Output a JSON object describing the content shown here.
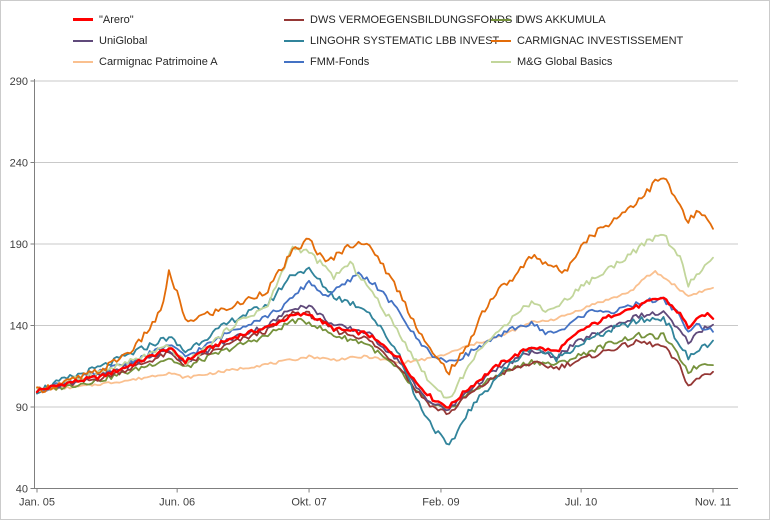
{
  "chart_data": {
    "type": "line",
    "title": "",
    "x_unit": "months since Jan 2005",
    "x_axis": {
      "tick_labels": [
        "Jan. 05",
        "Jun. 06",
        "Okt. 07",
        "Feb. 09",
        "Jul. 10",
        "Nov. 11"
      ],
      "tick_months": [
        0,
        17,
        33,
        49,
        66,
        82
      ],
      "min": 0,
      "max": 82
    },
    "y_axis": {
      "ticks": [
        40,
        90,
        140,
        190,
        240,
        290
      ],
      "min": 40,
      "max": 290
    },
    "grid": "horizontal",
    "legend_position": "top",
    "draw_order": [
      6,
      2,
      1,
      3,
      4,
      7,
      8,
      5,
      0
    ],
    "series": [
      {
        "name": "\"Arero\"",
        "key": "arero",
        "color": "#FF0000",
        "width": 2.4,
        "jitter": 1.3,
        "x": [
          0,
          4,
          8,
          12,
          16,
          18,
          20,
          24,
          28,
          31,
          33,
          36,
          40,
          44,
          46,
          48,
          50,
          52,
          56,
          60,
          63,
          66,
          70,
          73,
          75,
          76,
          78,
          79,
          81,
          82
        ],
        "y": [
          100,
          105,
          109,
          117,
          126,
          118,
          124,
          133,
          139,
          146,
          147,
          138,
          135,
          120,
          105,
          95,
          90,
          100,
          116,
          127,
          124,
          137,
          147,
          152,
          156,
          157,
          147,
          139,
          147,
          145
        ]
      },
      {
        "name": "DWS VERMOEGENSBILDUNGSFONDS  I",
        "key": "dws-vermoegensbildungsfonds",
        "color": "#953735",
        "width": 1.8,
        "jitter": 1.6,
        "x": [
          0,
          4,
          8,
          12,
          16,
          18,
          20,
          24,
          28,
          31,
          33,
          36,
          40,
          44,
          46,
          48,
          50,
          52,
          56,
          60,
          63,
          66,
          70,
          73,
          75,
          76,
          78,
          79,
          81,
          82
        ],
        "y": [
          100,
          104,
          108,
          115,
          123,
          116,
          121,
          130,
          137,
          148,
          147,
          137,
          132,
          115,
          100,
          90,
          86,
          96,
          110,
          117,
          114,
          119,
          126,
          130,
          128,
          127,
          115,
          103,
          110,
          111
        ]
      },
      {
        "name": "DWS AKKUMULA",
        "key": "dws-akkumula",
        "color": "#76923C",
        "width": 1.8,
        "jitter": 1.6,
        "x": [
          0,
          4,
          8,
          12,
          16,
          18,
          20,
          24,
          28,
          31,
          33,
          36,
          40,
          44,
          46,
          48,
          50,
          52,
          56,
          60,
          63,
          66,
          70,
          73,
          75,
          76,
          78,
          79,
          81,
          82
        ],
        "y": [
          100,
          103,
          107,
          113,
          120,
          114,
          119,
          127,
          134,
          143,
          142,
          134,
          129,
          112,
          99,
          91,
          88,
          97,
          110,
          118,
          116,
          122,
          130,
          134,
          133,
          134,
          120,
          112,
          117,
          117
        ]
      },
      {
        "name": "UniGlobal",
        "key": "uniglobal",
        "color": "#604A7B",
        "width": 1.8,
        "jitter": 1.6,
        "x": [
          0,
          4,
          8,
          12,
          16,
          18,
          20,
          24,
          28,
          31,
          33,
          36,
          40,
          44,
          46,
          48,
          50,
          52,
          56,
          60,
          63,
          66,
          70,
          73,
          75,
          76,
          78,
          79,
          81,
          82
        ],
        "y": [
          100,
          105,
          110,
          117,
          125,
          118,
          123,
          133,
          140,
          151,
          152,
          140,
          136,
          118,
          102,
          92,
          88,
          99,
          114,
          124,
          121,
          131,
          140,
          146,
          147,
          148,
          136,
          130,
          139,
          140
        ]
      },
      {
        "name": "LINGOHR SYSTEMATIC  LBB INVEST",
        "key": "lingohr-systematic",
        "color": "#31849B",
        "width": 1.8,
        "jitter": 2.0,
        "x": [
          0,
          4,
          8,
          12,
          16,
          18,
          20,
          24,
          28,
          31,
          33,
          36,
          40,
          44,
          46,
          48,
          50,
          52,
          56,
          60,
          63,
          66,
          70,
          73,
          75,
          76,
          78,
          79,
          81,
          82
        ],
        "y": [
          100,
          108,
          115,
          124,
          133,
          124,
          131,
          144,
          153,
          172,
          174,
          158,
          150,
          122,
          95,
          78,
          65,
          85,
          110,
          127,
          120,
          129,
          138,
          143,
          144,
          145,
          128,
          120,
          128,
          129
        ]
      },
      {
        "name": "CARMIGNAC INVESTISSEMENT",
        "key": "carmignac-investissement",
        "color": "#E36C09",
        "width": 1.8,
        "jitter": 2.2,
        "x": [
          0,
          4,
          8,
          12,
          15,
          16,
          17,
          18,
          20,
          24,
          28,
          31,
          33,
          35,
          37,
          39,
          41,
          44,
          46,
          48,
          50,
          52,
          54,
          56,
          58,
          60,
          62,
          64,
          66,
          68,
          70,
          72,
          74,
          75,
          76,
          77,
          78,
          79,
          80,
          81,
          82
        ],
        "y": [
          100,
          106,
          113,
          127,
          148,
          172,
          160,
          142,
          146,
          152,
          162,
          185,
          193,
          178,
          186,
          192,
          185,
          160,
          140,
          122,
          112,
          125,
          148,
          162,
          170,
          183,
          178,
          172,
          190,
          198,
          205,
          213,
          222,
          228,
          231,
          222,
          213,
          203,
          210,
          206,
          199
        ]
      },
      {
        "name": "Carmignac Patrimoine A",
        "key": "carmignac-patrimoine",
        "color": "#FAC08F",
        "width": 1.8,
        "jitter": 0.8,
        "x": [
          0,
          6,
          12,
          16,
          18,
          24,
          30,
          33,
          36,
          40,
          44,
          48,
          50,
          52,
          56,
          60,
          63,
          66,
          68,
          70,
          72,
          74,
          75,
          77,
          79,
          80,
          82
        ],
        "y": [
          100,
          103,
          107,
          111,
          108,
          113,
          118,
          121,
          119,
          121,
          117,
          120,
          123,
          127,
          133,
          142,
          144,
          150,
          154,
          157,
          161,
          170,
          173,
          166,
          158,
          160,
          163
        ]
      },
      {
        "name": "FMM-Fonds",
        "key": "fmm-fonds",
        "color": "#4472C4",
        "width": 1.8,
        "jitter": 1.6,
        "x": [
          0,
          4,
          8,
          12,
          16,
          18,
          20,
          24,
          28,
          30,
          33,
          35,
          37,
          39,
          41,
          44,
          46,
          48,
          50,
          52,
          54,
          56,
          58,
          60,
          62,
          64,
          66,
          68,
          70,
          72,
          74,
          76,
          78,
          79,
          80,
          82
        ],
        "y": [
          100,
          106,
          112,
          119,
          128,
          121,
          126,
          138,
          146,
          152,
          167,
          158,
          164,
          172,
          165,
          148,
          132,
          122,
          117,
          122,
          128,
          133,
          139,
          141,
          135,
          138,
          146,
          150,
          148,
          152,
          155,
          156,
          146,
          136,
          140,
          137
        ]
      },
      {
        "name": "M&G Global Basics",
        "key": "mg-global-basics",
        "color": "#C2D69B",
        "width": 1.8,
        "jitter": 1.8,
        "x": [
          0,
          4,
          8,
          12,
          16,
          18,
          20,
          24,
          28,
          31,
          33,
          36,
          38,
          40,
          44,
          46,
          48,
          50,
          52,
          54,
          56,
          58,
          60,
          62,
          64,
          66,
          68,
          70,
          72,
          74,
          75,
          76,
          78,
          79,
          80,
          82
        ],
        "y": [
          100,
          106,
          112,
          119,
          127,
          117,
          124,
          141,
          152,
          188,
          185,
          170,
          178,
          165,
          135,
          118,
          103,
          95,
          112,
          128,
          135,
          148,
          154,
          149,
          155,
          164,
          170,
          177,
          184,
          191,
          194,
          196,
          181,
          165,
          171,
          180
        ]
      }
    ]
  },
  "style": {
    "grid_color": "#c9c9c9",
    "axis_color": "#7f7f7f",
    "text_color": "#3f3f3f"
  }
}
